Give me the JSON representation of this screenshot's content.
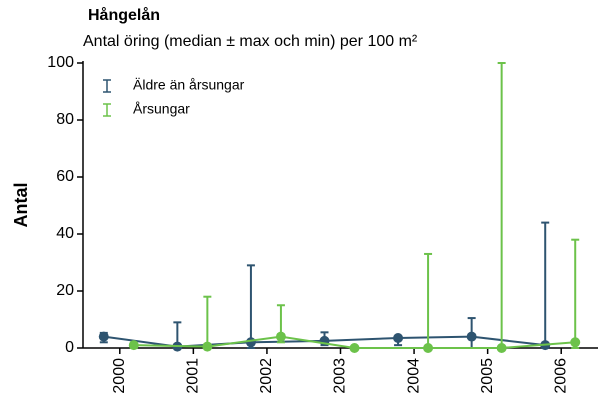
{
  "chart_data": {
    "type": "errorbar",
    "title": "Hångelån",
    "subtitle": "Antal öring (median ± max och min) per 100 m²",
    "y_label": "Antal",
    "categories": [
      "2000",
      "2001",
      "2002",
      "2003",
      "2004",
      "2005",
      "2006"
    ],
    "series": [
      {
        "name": "Äldre än årsungar",
        "color": "#2e5470",
        "values": [
          4,
          0.5,
          2,
          2.5,
          3.5,
          4,
          1
        ],
        "min": [
          2,
          0,
          0,
          1,
          1,
          0,
          0
        ],
        "max": [
          5.3,
          9,
          29,
          5.5,
          4,
          10.5,
          44
        ]
      },
      {
        "name": "Årsungar",
        "color": "#6cc24a",
        "values": [
          1,
          0.5,
          4,
          0,
          0,
          0,
          2
        ],
        "min": [
          0,
          0,
          2,
          0,
          0,
          0,
          0
        ],
        "max": [
          1,
          18,
          15,
          0,
          33,
          100,
          38
        ]
      }
    ],
    "ylim": [
      0,
      100
    ],
    "yticks": [
      0,
      20,
      40,
      60,
      80,
      100
    ],
    "legend": "upper left"
  }
}
